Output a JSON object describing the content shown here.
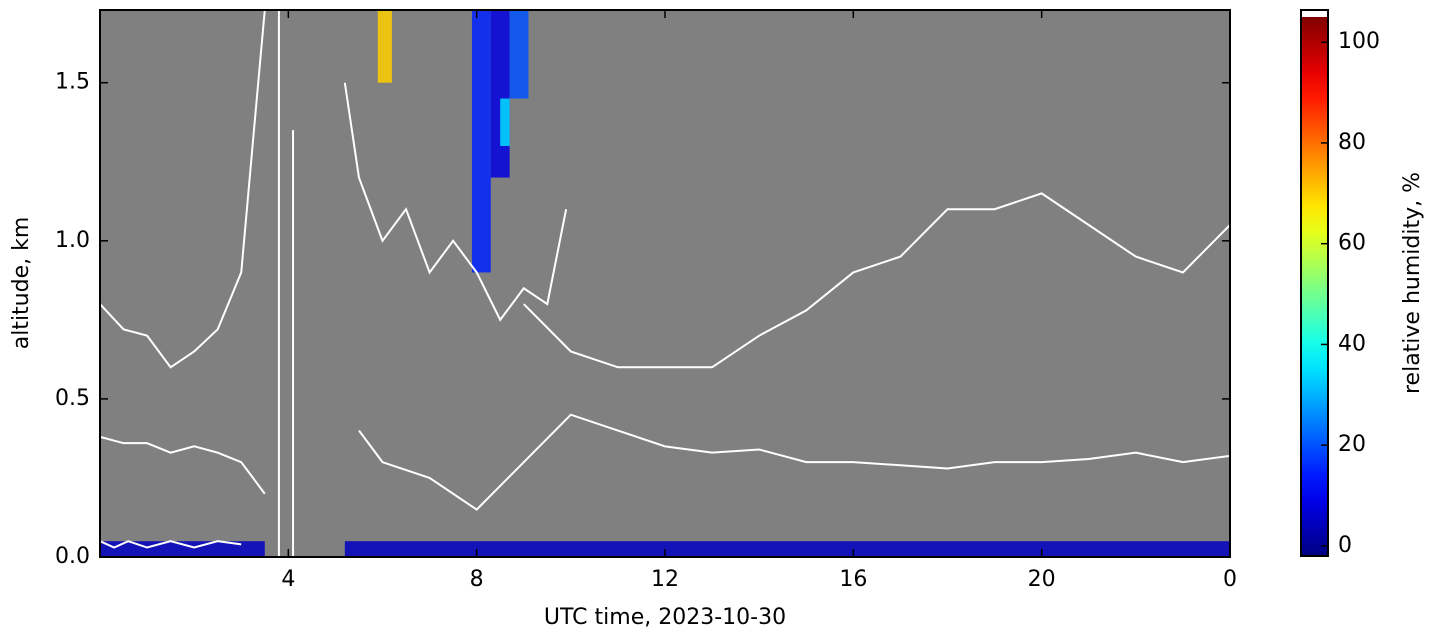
{
  "chart_data": {
    "type": "heatmap",
    "xlabel": "UTC time,  2023-10-30",
    "ylabel": "altitude, km",
    "xlim": [
      0,
      24
    ],
    "ylim": [
      0,
      1.73
    ],
    "xticks": [
      4,
      8,
      12,
      16,
      20,
      {
        "value": 24,
        "label": "0"
      }
    ],
    "yticks": [
      {
        "value": 0,
        "label": "0.0"
      },
      {
        "value": 0.5,
        "label": "0.5"
      },
      {
        "value": 1,
        "label": "1.0"
      },
      {
        "value": 1.5,
        "label": "1.5"
      }
    ],
    "background": "#808080",
    "colormap": "jet",
    "clim": [
      -2,
      105
    ],
    "colorbar_label": "relative humidity, %",
    "colorbar_ticks": [
      0,
      20,
      40,
      60,
      80,
      100
    ],
    "cells": [
      {
        "x": [
          0,
          3.5
        ],
        "y": [
          0,
          0.05
        ],
        "value": 5
      },
      {
        "x": [
          5.2,
          24
        ],
        "y": [
          0,
          0.05
        ],
        "value": 5
      },
      {
        "x": [
          5.9,
          6.2
        ],
        "y": [
          1.5,
          1.73
        ],
        "value": 70
      },
      {
        "x": [
          7.9,
          8.3
        ],
        "y": [
          0.9,
          1.73
        ],
        "value": 15
      },
      {
        "x": [
          8.3,
          8.7
        ],
        "y": [
          1.2,
          1.73
        ],
        "value": 8
      },
      {
        "x": [
          8.7,
          9.1
        ],
        "y": [
          1.45,
          1.73
        ],
        "value": 20
      },
      {
        "x": [
          8.5,
          8.7
        ],
        "y": [
          1.3,
          1.45
        ],
        "value": 35
      }
    ],
    "contour_color": "#ffffff",
    "contours": [
      {
        "x": [
          0,
          0.5,
          1,
          1.5,
          2,
          2.5,
          3,
          3.5,
          4,
          5,
          5.5,
          6,
          7,
          8,
          9,
          10,
          11,
          12,
          13,
          14,
          15,
          16,
          17,
          18,
          19,
          20,
          21,
          22,
          23,
          24
        ],
        "y": [
          0.38,
          0.36,
          0.36,
          0.33,
          0.35,
          0.33,
          0.3,
          0.2,
          null,
          null,
          0.4,
          0.3,
          0.25,
          0.15,
          0.3,
          0.45,
          0.4,
          0.35,
          0.33,
          0.34,
          0.3,
          0.3,
          0.29,
          0.28,
          0.3,
          0.3,
          0.31,
          0.33,
          0.3,
          0.32
        ]
      },
      {
        "x": [
          0,
          0.5,
          1,
          1.5,
          2,
          2.5,
          3,
          3.3,
          3.5
        ],
        "y": [
          0.8,
          0.72,
          0.7,
          0.6,
          0.65,
          0.72,
          0.9,
          1.4,
          1.73
        ]
      },
      {
        "x": [
          9,
          10,
          11,
          12,
          13,
          14,
          15,
          16,
          17,
          18,
          19,
          20,
          21,
          22,
          23,
          24
        ],
        "y": [
          0.8,
          0.65,
          0.6,
          0.6,
          0.6,
          0.7,
          0.78,
          0.9,
          0.95,
          1.1,
          1.1,
          1.15,
          1.05,
          0.95,
          0.9,
          1.05
        ]
      },
      {
        "x": [
          3.8,
          3.8
        ],
        "y": [
          0,
          1.73
        ]
      },
      {
        "x": [
          4.1,
          4.1
        ],
        "y": [
          0,
          1.35
        ]
      },
      {
        "x": [
          5.2,
          5.5,
          6,
          6.5,
          7,
          7.5,
          8,
          8.5,
          9,
          9.5,
          9.9
        ],
        "y": [
          1.5,
          1.2,
          1,
          1.1,
          0.9,
          1,
          0.9,
          0.75,
          0.85,
          0.8,
          1.1
        ]
      },
      {
        "x": [
          0,
          0.3,
          0.6,
          1,
          1.5,
          2,
          2.5,
          3
        ],
        "y": [
          0.05,
          0.03,
          0.05,
          0.03,
          0.05,
          0.03,
          0.05,
          0.04
        ]
      }
    ]
  }
}
